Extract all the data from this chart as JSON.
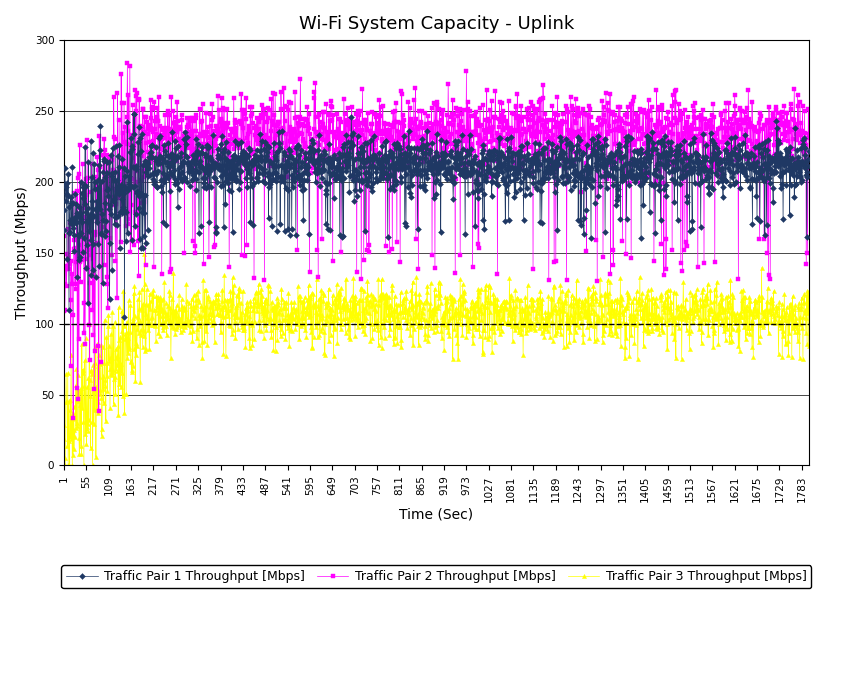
{
  "title": "Wi-Fi System Capacity - Uplink",
  "xlabel": "Time (Sec)",
  "ylabel": "Throughput (Mbps)",
  "ylim": [
    0,
    300
  ],
  "xlim": [
    1,
    1800
  ],
  "yticks": [
    0,
    50,
    100,
    150,
    200,
    250,
    300
  ],
  "xticks": [
    1,
    55,
    109,
    163,
    217,
    271,
    325,
    379,
    433,
    487,
    541,
    595,
    649,
    703,
    757,
    811,
    865,
    919,
    973,
    1027,
    1081,
    1135,
    1189,
    1243,
    1297,
    1351,
    1405,
    1459,
    1513,
    1567,
    1621,
    1675,
    1729,
    1783
  ],
  "series": [
    {
      "label": "Traffic Pair 1 Throughput [Mbps]",
      "color": "#1f3864",
      "marker": "D",
      "markersize": 3,
      "mean_stable": 212,
      "std_stable": 10,
      "dropout_prob": 0.04,
      "dropout_low": 160,
      "dropout_high": 175
    },
    {
      "label": "Traffic Pair 2 Throughput [Mbps]",
      "color": "#ff00ff",
      "marker": "s",
      "markersize": 3,
      "mean_stable": 235,
      "std_stable": 12,
      "dropout_prob": 0.05,
      "dropout_low": 130,
      "dropout_high": 160
    },
    {
      "label": "Traffic Pair 3 Throughput [Mbps]",
      "color": "#ffff00",
      "marker": "^",
      "markersize": 3,
      "mean_stable": 108,
      "std_stable": 10,
      "dropout_prob": 0.03,
      "dropout_low": 75,
      "dropout_high": 88
    }
  ],
  "hline": {
    "y": 100,
    "color": "black",
    "linestyle": "--",
    "linewidth": 1
  },
  "background_color": "#ffffff",
  "legend_fontsize": 9,
  "title_fontsize": 13,
  "axis_label_fontsize": 10,
  "tick_fontsize": 7.5,
  "seed": 12345,
  "n_points": 1800,
  "warmup_end": 200
}
